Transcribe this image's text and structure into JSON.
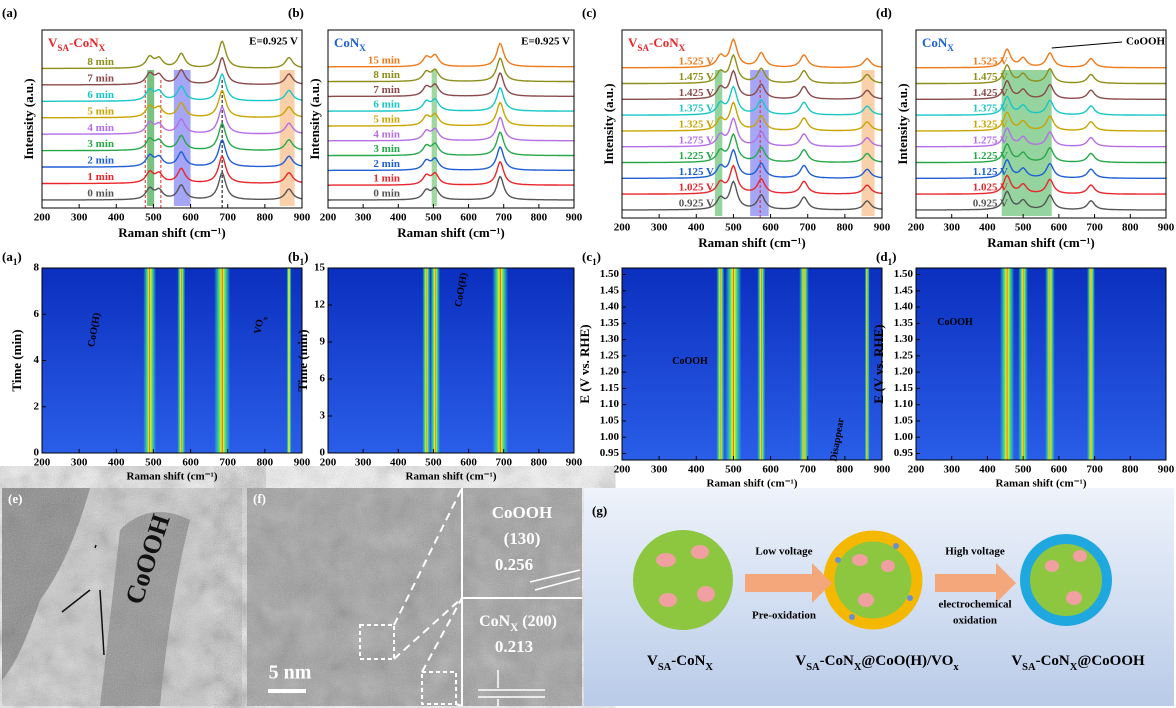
{
  "spectra": [
    {
      "letter": [
        "(a)"
      ],
      "title": [
        "V",
        "SA",
        "-CoN",
        "X"
      ],
      "title_color": "#e8262b",
      "potential": "E=0.925 V",
      "xlabel": "Raman shift (cm⁻¹)",
      "ylabel": "Intensity (a.u.)",
      "xlim": [
        200,
        900
      ],
      "xticks": [
        200,
        300,
        400,
        500,
        600,
        700,
        800,
        900
      ],
      "series": [
        {
          "name": "0 min",
          "color": "#555555"
        },
        {
          "name": "1 min",
          "color": "#e8262b"
        },
        {
          "name": "2 min",
          "color": "#1f5fd6"
        },
        {
          "name": "3 min",
          "color": "#26a84a"
        },
        {
          "name": "4 min",
          "color": "#b46ee6"
        },
        {
          "name": "5 min",
          "color": "#c9a400"
        },
        {
          "name": "6 min",
          "color": "#19c6c6"
        },
        {
          "name": "7 min",
          "color": "#8b4a4a"
        },
        {
          "name": "8 min",
          "color": "#8e8e1a"
        }
      ],
      "peaks": [
        {
          "position": 490,
          "height": 0.6
        },
        {
          "position": 515,
          "height": 0.5
        },
        {
          "position": 575,
          "height": 0.8
        },
        {
          "position": 685,
          "height": 1.5
        },
        {
          "position": 865,
          "height": 0.6
        }
      ],
      "bands": [
        {
          "from": 483,
          "to": 502,
          "color": "#1f9a2f"
        },
        {
          "from": 555,
          "to": 600,
          "color": "#6a6af0"
        },
        {
          "from": 840,
          "to": 880,
          "color": "#f5b070"
        }
      ],
      "markers": [
        {
          "position": 478,
          "color": "#e8262b"
        },
        {
          "position": 520,
          "color": "#e8262b"
        },
        {
          "position": 685,
          "color": "#000000"
        }
      ]
    },
    {
      "letter": [
        "(b)"
      ],
      "title": [
        "CoN",
        "X"
      ],
      "title_color": "#1f5fd6",
      "potential": "E=0.925 V",
      "xlabel": "Raman shift (cm⁻¹)",
      "ylabel": "Intensity (a.u.)",
      "xlim": [
        200,
        900
      ],
      "xticks": [
        200,
        300,
        400,
        500,
        600,
        700,
        800,
        900
      ],
      "series": [
        {
          "name": "0 min",
          "color": "#555555"
        },
        {
          "name": "1 min",
          "color": "#e8262b"
        },
        {
          "name": "2 min",
          "color": "#1f5fd6"
        },
        {
          "name": "3 min",
          "color": "#26a84a"
        },
        {
          "name": "4 min",
          "color": "#b46ee6"
        },
        {
          "name": "5 min",
          "color": "#c9a400"
        },
        {
          "name": "6 min",
          "color": "#19c6c6"
        },
        {
          "name": "7 min",
          "color": "#8b4a4a"
        },
        {
          "name": "8 min",
          "color": "#8e8e1a"
        },
        {
          "name": "15 min",
          "color": "#f07a1a"
        }
      ],
      "peaks": [
        {
          "position": 480,
          "height": 0.5
        },
        {
          "position": 505,
          "height": 0.6
        },
        {
          "position": 690,
          "height": 1.3
        }
      ],
      "bands": [
        {
          "from": 495,
          "to": 510,
          "color": "#5fbf5f"
        }
      ],
      "markers": []
    },
    {
      "letter": [
        "(c)"
      ],
      "title": [
        "V",
        "SA",
        "-CoN",
        "X"
      ],
      "title_color": "#e8262b",
      "xlabel": "Raman shift (cm⁻¹)",
      "ylabel": "Intensity (a.u.)",
      "xlim": [
        200,
        900
      ],
      "xticks": [
        200,
        300,
        400,
        500,
        600,
        700,
        800,
        900
      ],
      "series": [
        {
          "name": "0.925 V",
          "color": "#555555"
        },
        {
          "name": "1.025 V",
          "color": "#e8262b"
        },
        {
          "name": "1.125 V",
          "color": "#1f5fd6"
        },
        {
          "name": "1.225 V",
          "color": "#26a84a"
        },
        {
          "name": "1.275 V",
          "color": "#b46ee6"
        },
        {
          "name": "1.325 V",
          "color": "#c9a400"
        },
        {
          "name": "1.375 V",
          "color": "#19c6c6"
        },
        {
          "name": "1.425 V",
          "color": "#8b4a4a"
        },
        {
          "name": "1.475 V",
          "color": "#8e8e1a"
        },
        {
          "name": "1.525 V",
          "color": "#f07a1a"
        }
      ],
      "peaks": [
        {
          "position": 465,
          "height": 0.6
        },
        {
          "position": 500,
          "height": 1.5
        },
        {
          "position": 575,
          "height": 0.8
        },
        {
          "position": 690,
          "height": 0.7
        },
        {
          "position": 860,
          "height": 0.5
        }
      ],
      "bands": [
        {
          "from": 450,
          "to": 470,
          "color": "#4fb85f"
        },
        {
          "from": 545,
          "to": 595,
          "color": "#6a6af0"
        },
        {
          "from": 845,
          "to": 880,
          "color": "#f5b070"
        }
      ],
      "markers": [
        {
          "position": 572,
          "color": "#e8262b"
        }
      ]
    },
    {
      "letter": [
        "(d)"
      ],
      "title": [
        "CoN",
        "X"
      ],
      "title_color": "#1f5fd6",
      "annotation": "CoOOH",
      "xlabel": "Raman shift (cm⁻¹)",
      "ylabel": "Intensity (a.u.)",
      "xlim": [
        200,
        900
      ],
      "xticks": [
        200,
        300,
        400,
        500,
        600,
        700,
        800,
        900
      ],
      "series": [
        {
          "name": "0.925 V",
          "color": "#555555"
        },
        {
          "name": "1.025 V",
          "color": "#e8262b"
        },
        {
          "name": "1.125 V",
          "color": "#1f5fd6"
        },
        {
          "name": "1.225 V",
          "color": "#26a84a"
        },
        {
          "name": "1.275 V",
          "color": "#b46ee6"
        },
        {
          "name": "1.325 V",
          "color": "#c9a400"
        },
        {
          "name": "1.375 V",
          "color": "#19c6c6"
        },
        {
          "name": "1.425 V",
          "color": "#8b4a4a"
        },
        {
          "name": "1.475 V",
          "color": "#8e8e1a"
        },
        {
          "name": "1.525 V",
          "color": "#f07a1a"
        }
      ],
      "peaks": [
        {
          "position": 455,
          "height": 1.0
        },
        {
          "position": 500,
          "height": 0.5
        },
        {
          "position": 575,
          "height": 0.8
        },
        {
          "position": 690,
          "height": 0.5
        }
      ],
      "bands": [
        {
          "from": 440,
          "to": 580,
          "color": "#4fb85f"
        }
      ],
      "markers": []
    }
  ],
  "maps": [
    {
      "letter": [
        "(a",
        "1",
        ")"
      ],
      "xlabel": "Raman shift (cm⁻¹)",
      "ylabel": "Time (min)",
      "xlim": [
        200,
        900
      ],
      "xticks": [
        200,
        300,
        400,
        500,
        600,
        700,
        800,
        900
      ],
      "ylim": [
        0,
        8
      ],
      "yticks": [
        0,
        2,
        4,
        6,
        8
      ],
      "stripes": [
        {
          "position": 490,
          "strength": 0.8
        },
        {
          "position": 575,
          "strength": 0.5
        },
        {
          "position": 685,
          "strength": 1.0
        },
        {
          "position": 865,
          "strength": 0.3
        }
      ],
      "annotations": [
        [
          "CoO(H)"
        ],
        [
          "VO",
          "x"
        ]
      ]
    },
    {
      "letter": [
        "(b",
        "1",
        ")"
      ],
      "xlabel": "Raman shift (cm⁻¹)",
      "ylabel": "Time (min)",
      "xlim": [
        200,
        900
      ],
      "xticks": [
        200,
        300,
        400,
        500,
        600,
        700,
        800,
        900
      ],
      "ylim": [
        0,
        15
      ],
      "yticks": [
        0,
        3,
        6,
        9,
        12,
        15
      ],
      "stripes": [
        {
          "position": 480,
          "strength": 0.5
        },
        {
          "position": 505,
          "strength": 0.6
        },
        {
          "position": 690,
          "strength": 1.0
        }
      ],
      "annotations": [
        [
          "CoO(H)"
        ]
      ]
    },
    {
      "letter": [
        "(c",
        "1",
        ")"
      ],
      "xlabel": "Raman shift (cm⁻¹)",
      "ylabel": "E (V vs. RHE)",
      "xlim": [
        200,
        900
      ],
      "xticks": [
        200,
        300,
        400,
        500,
        600,
        700,
        800,
        900
      ],
      "ylim": [
        0.93,
        1.52
      ],
      "yticks": [
        0.95,
        {
          "value": 1,
          "label": "1.00"
        },
        1.05,
        {
          "value": 1.1,
          "label": "1.10"
        },
        1.15,
        {
          "value": 1.2,
          "label": "1.20"
        },
        1.25,
        {
          "value": 1.3,
          "label": "1.30"
        },
        1.35,
        {
          "value": 1.4,
          "label": "1.40"
        },
        1.45,
        {
          "value": 1.5,
          "label": "1.50"
        }
      ],
      "stripes": [
        {
          "position": 465,
          "strength": 0.5
        },
        {
          "position": 500,
          "strength": 1.0
        },
        {
          "position": 575,
          "strength": 0.5
        },
        {
          "position": 690,
          "strength": 0.6
        },
        {
          "position": 860,
          "strength": 0.3
        }
      ],
      "annotations": [
        [
          "CoOOH"
        ],
        [
          "Disappear"
        ]
      ]
    },
    {
      "letter": [
        "(d",
        "1",
        ")"
      ],
      "xlabel": "Raman shift (cm⁻¹)",
      "ylabel": "E (V vs. RHE)",
      "xlim": [
        200,
        900
      ],
      "xticks": [
        200,
        300,
        400,
        500,
        600,
        700,
        800,
        900
      ],
      "ylim": [
        0.93,
        1.52
      ],
      "yticks": [
        0.95,
        {
          "value": 1,
          "label": "1.00"
        },
        1.05,
        {
          "value": 1.1,
          "label": "1.10"
        },
        1.15,
        {
          "value": 1.2,
          "label": "1.20"
        },
        1.25,
        {
          "value": 1.3,
          "label": "1.30"
        },
        1.35,
        {
          "value": 1.4,
          "label": "1.40"
        },
        1.45,
        {
          "value": 1.5,
          "label": "1.50"
        }
      ],
      "stripes": [
        {
          "position": 455,
          "strength": 0.9
        },
        {
          "position": 500,
          "strength": 0.6
        },
        {
          "position": 575,
          "strength": 0.6
        },
        {
          "position": 690,
          "strength": 0.5
        }
      ],
      "annotations": [
        [
          "CoOOH"
        ]
      ]
    }
  ],
  "tem": {
    "letter": "(e)",
    "label": "CoOOH"
  },
  "hrtem": {
    "letter": "(f)",
    "scale": "5 nm",
    "phase1": "CoOOH",
    "plane1": "(130)",
    "d1": "0.256",
    "phase2": [
      "CoN",
      "X",
      " (200)"
    ],
    "d2": "0.213"
  },
  "scheme": {
    "letter": "(g)",
    "step1_top": "Low voltage",
    "step1_bottom": "Pre-oxidation",
    "step2_top": "High voltage",
    "step2_bottom_1": "electrochemical",
    "step2_bottom_2": "oxidation",
    "labels": [
      [
        "V",
        "SA",
        "-CoN",
        "X"
      ],
      [
        "V",
        "SA",
        "-CoN",
        "X",
        "@CoO(H)/VO",
        "x"
      ],
      [
        "V",
        "SA",
        "-CoN",
        "X",
        "@CoOOH"
      ]
    ]
  }
}
